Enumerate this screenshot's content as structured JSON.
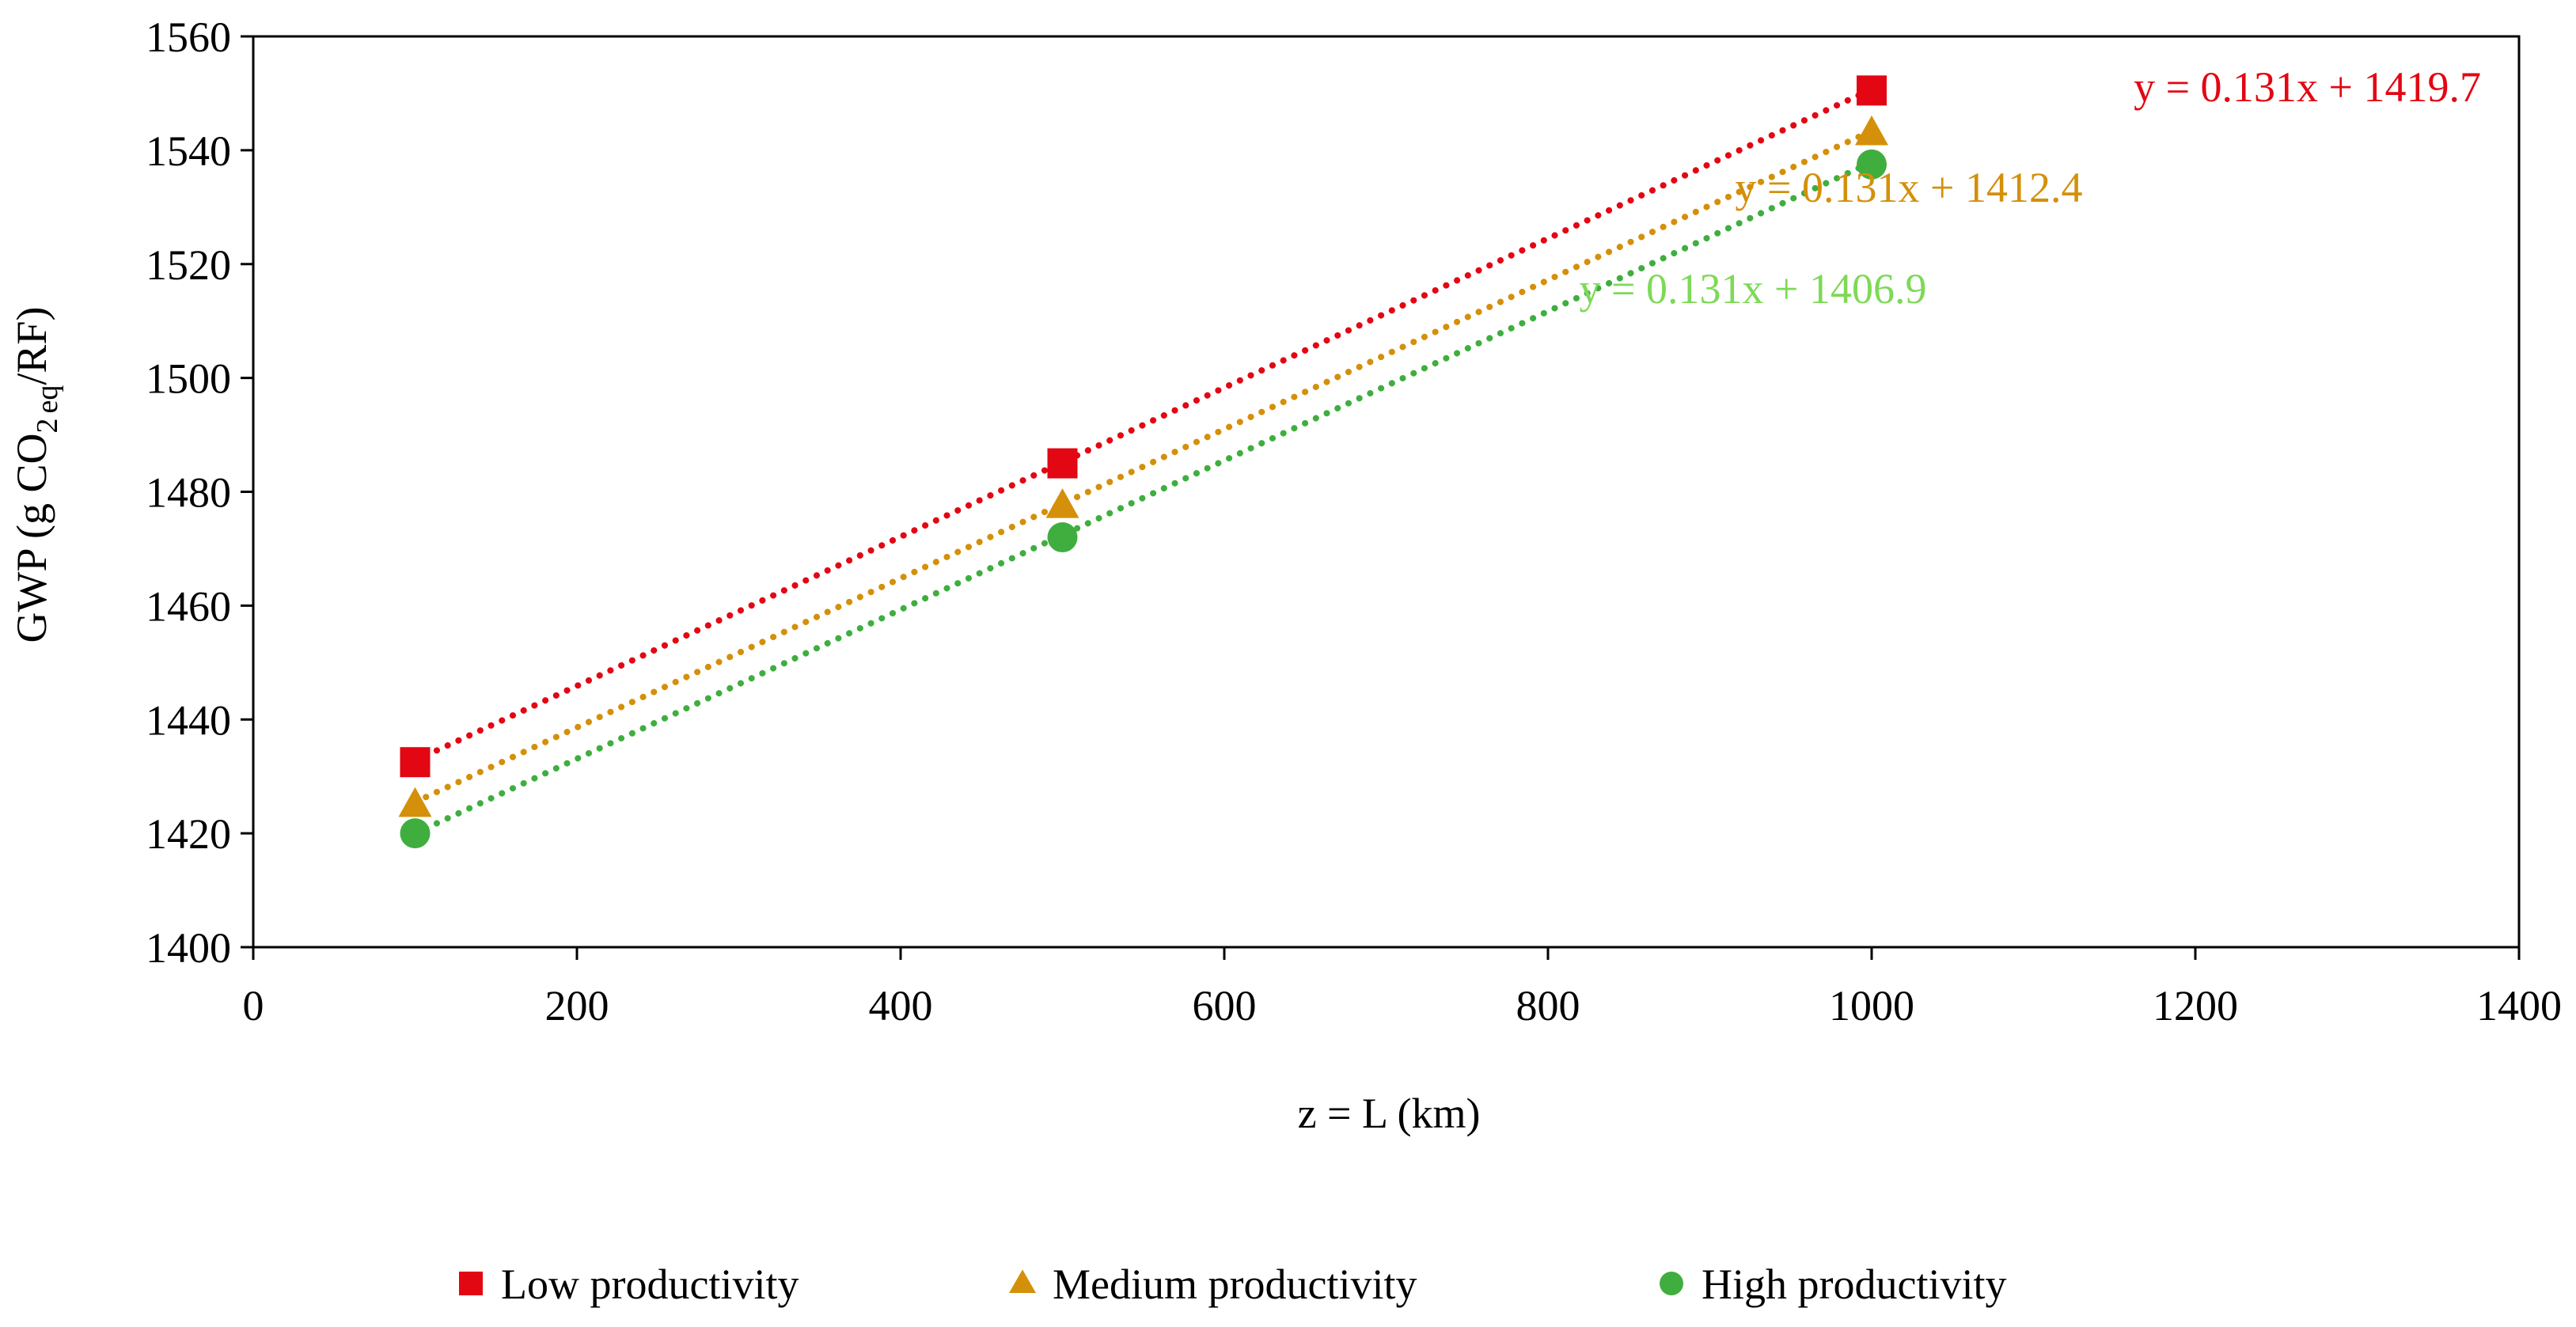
{
  "chart_data": {
    "type": "scatter",
    "title": "",
    "xlabel": "z = L (km)",
    "ylabel": {
      "prefix": "GWP (g CO",
      "sub_2": "2",
      "sub_eq": "eq",
      "suffix": "/RF)"
    },
    "xlim": [
      0,
      1400
    ],
    "ylim": [
      1400,
      1560
    ],
    "xticks": [
      0,
      200,
      400,
      600,
      800,
      1000,
      1200,
      1400
    ],
    "yticks": [
      1400,
      1420,
      1440,
      1460,
      1480,
      1500,
      1520,
      1540,
      1560
    ],
    "grid": false,
    "legend_position": "bottom",
    "series": [
      {
        "name": "Low productivity",
        "marker": "square",
        "color": "#E30613",
        "x": [
          100,
          500,
          1000
        ],
        "y": [
          1432.5,
          1485.0,
          1550.5
        ],
        "trendline": {
          "slope": 0.131,
          "intercept": 1419.7,
          "label": "y = 0.131x + 1419.7"
        }
      },
      {
        "name": "Medium productivity",
        "marker": "triangle",
        "color": "#D4900A",
        "x": [
          100,
          500,
          1000
        ],
        "y": [
          1425.0,
          1477.5,
          1543.0
        ],
        "trendline": {
          "slope": 0.131,
          "intercept": 1412.4,
          "label": "y = 0.131x + 1412.4"
        }
      },
      {
        "name": "High productivity",
        "marker": "circle",
        "color": "#3FAE3F",
        "x": [
          100,
          500,
          1000
        ],
        "y": [
          1420.0,
          1472.0,
          1537.5
        ],
        "trendline": {
          "slope": 0.131,
          "intercept": 1406.9,
          "label": "y = 0.131x + 1406.9"
        },
        "trendline_label_color": "#7ED957"
      }
    ]
  }
}
